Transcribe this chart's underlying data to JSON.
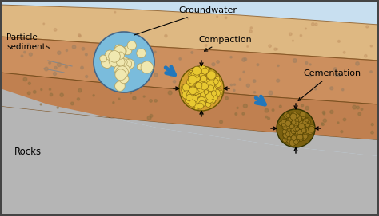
{
  "bg_top_color": "#c8dff0",
  "gray_left_color": "#b8b8b8",
  "layer1_color": "#d4a878",
  "layer2_color": "#c8935a",
  "layer3_color": "#b87840",
  "layer_edge_dark": "#8b6030",
  "dot_color1": "#a08060",
  "dot_color2": "#907040",
  "label_groundwater": "Groundwater",
  "label_particle": "Particle\nsediments",
  "label_rocks": "Rocks",
  "label_compaction": "Compaction",
  "label_cementation": "Cementation",
  "arrow_blue": "#2277bb",
  "cluster1_bg": "#7abcdc",
  "cluster1_grain": "#f0e8b0",
  "cluster1_grain_edge": "#b0a060",
  "cluster2_bg": "#d4a030",
  "cluster2_grain": "#e8c830",
  "cluster2_grain_edge": "#806010",
  "cluster3_bg": "#7a6010",
  "cluster3_grain": "#9a7820",
  "cluster3_grain_edge": "#504000"
}
